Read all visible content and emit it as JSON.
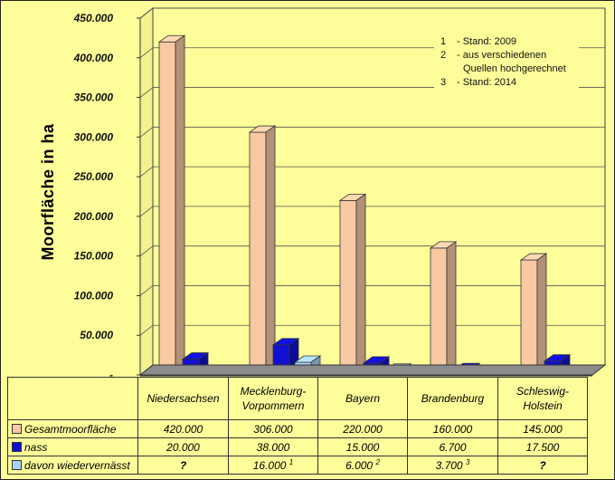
{
  "chart_data": {
    "type": "bar",
    "ylabel": "Moorfläche in ha",
    "ylim": [
      0,
      450000
    ],
    "y_ticks": [
      {
        "value": 0,
        "label": "-"
      },
      {
        "value": 50000,
        "label": "50.000"
      },
      {
        "value": 100000,
        "label": "100.000"
      },
      {
        "value": 150000,
        "label": "150.000"
      },
      {
        "value": 200000,
        "label": "200.000"
      },
      {
        "value": 250000,
        "label": "250.000"
      },
      {
        "value": 300000,
        "label": "300.000"
      },
      {
        "value": 350000,
        "label": "350.000"
      },
      {
        "value": 400000,
        "label": "400.000"
      },
      {
        "value": 450000,
        "label": "450.000"
      }
    ],
    "categories": [
      {
        "line1": "Niedersachsen",
        "line2": ""
      },
      {
        "line1": "Mecklenburg-",
        "line2": "Vorpommern"
      },
      {
        "line1": "Bayern",
        "line2": ""
      },
      {
        "line1": "Brandenburg",
        "line2": ""
      },
      {
        "line1": "Schleswig-",
        "line2": "Holstein"
      }
    ],
    "series": [
      {
        "name": "Gesamtmoorfläche",
        "color": "#f9c9a4",
        "values": [
          420000,
          306000,
          220000,
          160000,
          145000
        ],
        "labels": [
          "420.000",
          "306.000",
          "220.000",
          "160.000",
          "145.000"
        ],
        "notes": [
          "",
          "",
          "",
          "",
          ""
        ]
      },
      {
        "name": "nass",
        "color": "#1010d0",
        "values": [
          20000,
          38000,
          15000,
          6700,
          17500
        ],
        "labels": [
          "20.000",
          "38.000",
          "15.000",
          "6.700",
          "17.500"
        ],
        "notes": [
          "",
          "",
          "",
          "",
          ""
        ]
      },
      {
        "name": "davon wiedervernässt",
        "color": "#a9d4f5",
        "values": [
          null,
          16000,
          6000,
          3700,
          null
        ],
        "labels": [
          "?",
          "16.000",
          "6.000",
          "3.700",
          "?"
        ],
        "notes": [
          "",
          "1",
          "2",
          "3",
          ""
        ]
      }
    ],
    "footnotes": [
      {
        "num": "1",
        "text": "- Stand: 2009"
      },
      {
        "num": "2",
        "text": "- aus verschiedenen"
      },
      {
        "num": "",
        "text": "Quellen hochgerechnet"
      },
      {
        "num": "3",
        "text": "- Stand: 2014"
      }
    ]
  }
}
